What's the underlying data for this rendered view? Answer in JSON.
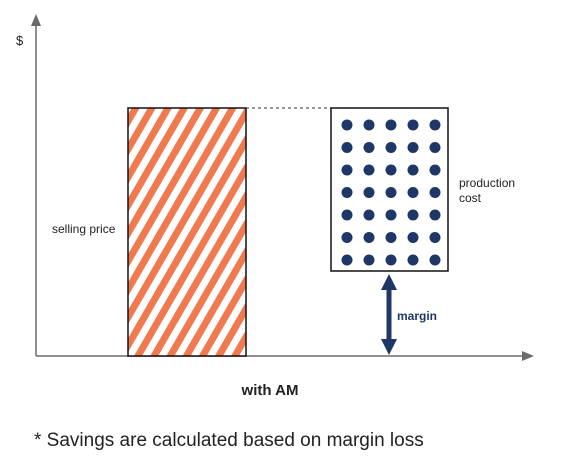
{
  "diagram": {
    "y_axis_label": "$",
    "selling_price_label": "selling price",
    "production_cost_label": [
      "production",
      "cost"
    ],
    "margin_label": "margin",
    "caption": "with AM"
  },
  "footnote": "* Savings are calculated based on margin loss",
  "colors": {
    "axis": "#6b6b6b",
    "hatch_orange": "#f07a50",
    "dot_navy": "#1f3766",
    "arrow_navy": "#1f3766",
    "box_outline": "#111111",
    "text": "#222222"
  },
  "icons": {
    "y_axis_arrow": "arrow-up-icon",
    "x_axis_arrow": "arrow-right-icon",
    "margin_arrow": "double-arrow-vertical-icon"
  }
}
